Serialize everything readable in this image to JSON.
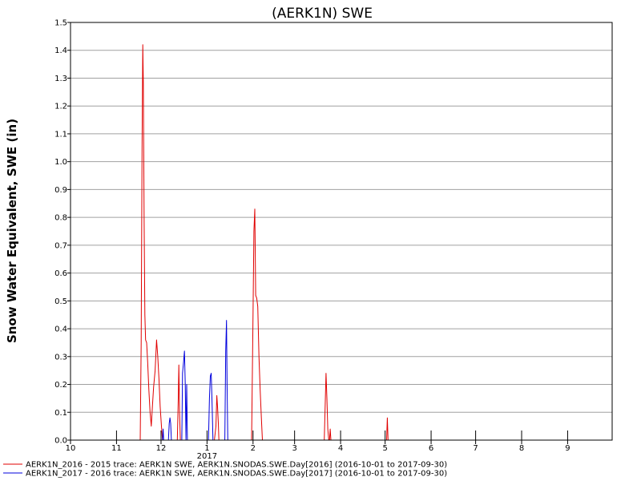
{
  "chart_data": {
    "type": "line",
    "title": "(AERK1N) SWE",
    "ylabel": "Snow Water Equivalent, SWE (in)",
    "xlabel": "",
    "ylim": [
      0,
      1.5
    ],
    "yticks": [
      "0.0",
      "0.1",
      "0.2",
      "0.3",
      "0.4",
      "0.5",
      "0.6",
      "0.7",
      "0.8",
      "0.9",
      "1.0",
      "1.1",
      "1.2",
      "1.3",
      "1.4",
      "1.5"
    ],
    "x_month_ticks": [
      {
        "day": 0,
        "label": "10"
      },
      {
        "day": 31,
        "label": "11"
      },
      {
        "day": 61,
        "label": "12"
      },
      {
        "day": 92,
        "label": "1"
      },
      {
        "day": 123,
        "label": "2"
      },
      {
        "day": 151,
        "label": "3"
      },
      {
        "day": 182,
        "label": "4"
      },
      {
        "day": 212,
        "label": "5"
      },
      {
        "day": 243,
        "label": "6"
      },
      {
        "day": 273,
        "label": "7"
      },
      {
        "day": 304,
        "label": "8"
      },
      {
        "day": 335,
        "label": "9"
      }
    ],
    "x_year_label": {
      "day": 92,
      "label": "2017"
    },
    "x_range_days": [
      0,
      365
    ],
    "grid": true,
    "legend_position": "bottom-left",
    "series": [
      {
        "name": "AERK1N_2016 - 2015 trace: AERK1N SWE, AERK1N.SNODAS.SWE.Day[2016] (2016-10-01 to 2017-09-30)",
        "color": "#e00000",
        "points": [
          [
            47,
            0
          ],
          [
            47.6,
            0.35
          ],
          [
            48.2,
            1.05
          ],
          [
            48.7,
            1.42
          ],
          [
            49.1,
            1.28
          ],
          [
            49.6,
            0.78
          ],
          [
            50.1,
            0.45
          ],
          [
            50.6,
            0.36
          ],
          [
            51.3,
            0.35
          ],
          [
            52,
            0.28
          ],
          [
            52.8,
            0.18
          ],
          [
            53.6,
            0.1
          ],
          [
            54.4,
            0.05
          ],
          [
            55.2,
            0.12
          ],
          [
            56,
            0.19
          ],
          [
            57,
            0.25
          ],
          [
            58,
            0.36
          ],
          [
            58.8,
            0.3
          ],
          [
            59.6,
            0.22
          ],
          [
            60.4,
            0.12
          ],
          [
            61.3,
            0.05
          ],
          [
            62,
            0
          ],
          [
            72,
            0
          ],
          [
            72.6,
            0.15
          ],
          [
            73,
            0.27
          ],
          [
            73.5,
            0.1
          ],
          [
            74,
            0
          ],
          [
            97,
            0
          ],
          [
            98,
            0.05
          ],
          [
            98.6,
            0.16
          ],
          [
            99.1,
            0.12
          ],
          [
            99.6,
            0.06
          ],
          [
            100,
            0
          ],
          [
            122,
            0
          ],
          [
            123,
            0.45
          ],
          [
            123.6,
            0.75
          ],
          [
            124.2,
            0.83
          ],
          [
            124.8,
            0.52
          ],
          [
            125.5,
            0.51
          ],
          [
            126.2,
            0.48
          ],
          [
            127,
            0.3
          ],
          [
            127.8,
            0.18
          ],
          [
            128.6,
            0.08
          ],
          [
            129.3,
            0
          ],
          [
            171,
            0
          ],
          [
            171.6,
            0.12
          ],
          [
            172.2,
            0.24
          ],
          [
            172.8,
            0.15
          ],
          [
            173.4,
            0.04
          ],
          [
            174,
            0
          ],
          [
            174.5,
            0
          ],
          [
            175,
            0.04
          ],
          [
            175.5,
            0
          ],
          [
            213,
            0
          ],
          [
            213.5,
            0.08
          ],
          [
            214,
            0
          ]
        ]
      },
      {
        "name": "AERK1N_2017 - 2016 trace: AERK1N SWE, AERK1N.SNODAS.SWE.Day[2017] (2016-10-01 to 2017-09-30)",
        "color": "#0000dd",
        "points": [
          [
            62,
            0
          ],
          [
            62.4,
            0.04
          ],
          [
            62.8,
            0
          ],
          [
            66,
            0
          ],
          [
            66.5,
            0.06
          ],
          [
            67,
            0.08
          ],
          [
            67.5,
            0.06
          ],
          [
            68,
            0
          ],
          [
            75,
            0
          ],
          [
            75.5,
            0.24
          ],
          [
            76.2,
            0.28
          ],
          [
            76.8,
            0.32
          ],
          [
            77.3,
            0.2
          ],
          [
            77.8,
            0
          ],
          [
            78.3,
            0.2
          ],
          [
            78.8,
            0
          ],
          [
            93,
            0
          ],
          [
            93.6,
            0.15
          ],
          [
            94.2,
            0.23
          ],
          [
            94.8,
            0.24
          ],
          [
            95.4,
            0.13
          ],
          [
            96,
            0
          ],
          [
            104,
            0
          ],
          [
            104.6,
            0.32
          ],
          [
            105.1,
            0.43
          ],
          [
            105.5,
            0.2
          ],
          [
            106,
            0
          ]
        ]
      }
    ]
  }
}
